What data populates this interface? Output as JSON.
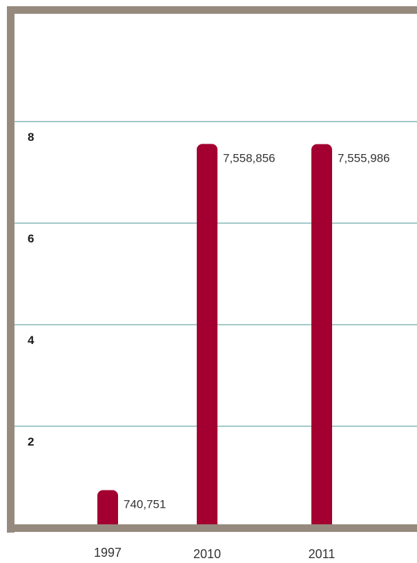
{
  "colors": {
    "frame": "#968a7e",
    "grid": "#6aa8a8",
    "bar": "#a30031",
    "background": "#ffffff"
  },
  "chart_data": {
    "type": "bar",
    "title": "",
    "xlabel": "",
    "ylabel": "",
    "categories": [
      "1997",
      "2010",
      "2011"
    ],
    "values": [
      740751,
      7558856,
      7555986
    ],
    "data_labels": [
      "740,751",
      "7,558,856",
      "7,555,986"
    ],
    "yticks": [
      2,
      4,
      6,
      8
    ],
    "ytick_labels": [
      "2",
      "4",
      "6",
      "8"
    ],
    "y_unit_multiplier": 1000000,
    "grid": true,
    "legend": "none"
  }
}
